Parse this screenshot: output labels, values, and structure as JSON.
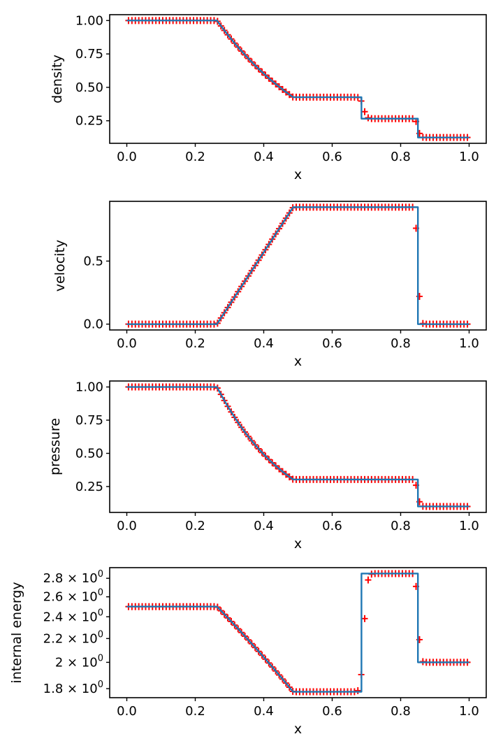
{
  "figure": {
    "background": "#ffffff",
    "line_color": "#1f77b4",
    "marker_color": "#ff0000",
    "axis_color": "#000000"
  },
  "marker_x": [
    0.005,
    0.015,
    0.025,
    0.035,
    0.045,
    0.055,
    0.065,
    0.075,
    0.085,
    0.095,
    0.105,
    0.115,
    0.125,
    0.135,
    0.145,
    0.155,
    0.165,
    0.175,
    0.185,
    0.195,
    0.205,
    0.215,
    0.225,
    0.235,
    0.245,
    0.255,
    0.265,
    0.275,
    0.285,
    0.295,
    0.305,
    0.315,
    0.325,
    0.335,
    0.345,
    0.355,
    0.365,
    0.375,
    0.385,
    0.395,
    0.405,
    0.415,
    0.425,
    0.435,
    0.445,
    0.455,
    0.465,
    0.475,
    0.485,
    0.495,
    0.505,
    0.515,
    0.525,
    0.535,
    0.545,
    0.555,
    0.565,
    0.575,
    0.585,
    0.595,
    0.605,
    0.615,
    0.625,
    0.635,
    0.645,
    0.655,
    0.665,
    0.675,
    0.685,
    0.695,
    0.705,
    0.715,
    0.725,
    0.735,
    0.745,
    0.755,
    0.765,
    0.775,
    0.785,
    0.795,
    0.805,
    0.815,
    0.825,
    0.835,
    0.845,
    0.855,
    0.865,
    0.875,
    0.885,
    0.895,
    0.905,
    0.915,
    0.925,
    0.935,
    0.945,
    0.955,
    0.965,
    0.975,
    0.985,
    0.995
  ],
  "chart_data": [
    {
      "type": "line",
      "title": "",
      "xlabel": "x",
      "ylabel": "density",
      "xscale": "linear",
      "yscale": "linear",
      "xlim": [
        -0.05,
        1.05
      ],
      "ylim": [
        0.08125,
        1.04375
      ],
      "xticks": {
        "values": [
          0.0,
          0.2,
          0.4,
          0.6,
          0.8,
          1.0
        ],
        "labels": [
          "0.0",
          "0.2",
          "0.4",
          "0.6",
          "0.8",
          "1.0"
        ]
      },
      "yticks": {
        "values": [
          0.25,
          0.5,
          0.75,
          1.0
        ],
        "labels": [
          "0.25",
          "0.50",
          "0.75",
          "1.00"
        ]
      },
      "grid": false,
      "legend": null,
      "line_points": [
        [
          0.0,
          1.0
        ],
        [
          0.2634,
          1.0
        ],
        [
          0.265,
          0.9942
        ],
        [
          0.275,
          0.9597
        ],
        [
          0.285,
          0.9261
        ],
        [
          0.295,
          0.8934
        ],
        [
          0.305,
          0.8617
        ],
        [
          0.315,
          0.8309
        ],
        [
          0.325,
          0.801
        ],
        [
          0.335,
          0.7719
        ],
        [
          0.345,
          0.7437
        ],
        [
          0.355,
          0.7163
        ],
        [
          0.365,
          0.6897
        ],
        [
          0.375,
          0.664
        ],
        [
          0.385,
          0.639
        ],
        [
          0.395,
          0.6147
        ],
        [
          0.405,
          0.5912
        ],
        [
          0.415,
          0.5685
        ],
        [
          0.425,
          0.5464
        ],
        [
          0.435,
          0.525
        ],
        [
          0.445,
          0.5043
        ],
        [
          0.455,
          0.4843
        ],
        [
          0.465,
          0.4649
        ],
        [
          0.475,
          0.4461
        ],
        [
          0.485,
          0.4279
        ],
        [
          0.4859,
          0.4263
        ],
        [
          0.6855,
          0.4263
        ],
        [
          0.6855,
          0.2656
        ],
        [
          0.8504,
          0.2656
        ],
        [
          0.8504,
          0.125
        ],
        [
          1.0,
          0.125
        ]
      ],
      "marker_y": [
        1,
        1,
        1,
        1,
        1,
        1,
        1,
        1,
        1,
        1,
        1,
        1,
        1,
        1,
        1,
        1,
        1,
        1,
        1,
        1,
        1,
        1,
        1,
        1,
        1,
        1,
        0.9942,
        0.9597,
        0.9261,
        0.8934,
        0.8617,
        0.8309,
        0.801,
        0.7719,
        0.7437,
        0.7163,
        0.6897,
        0.664,
        0.639,
        0.6147,
        0.5912,
        0.5685,
        0.5464,
        0.525,
        0.5043,
        0.4843,
        0.4649,
        0.4461,
        0.4279,
        0.4263,
        0.4263,
        0.4263,
        0.4263,
        0.4263,
        0.4263,
        0.4263,
        0.4263,
        0.4263,
        0.4263,
        0.4263,
        0.4263,
        0.4263,
        0.4263,
        0.4263,
        0.4263,
        0.4263,
        0.4263,
        0.4245,
        0.398,
        0.318,
        0.2725,
        0.2662,
        0.2656,
        0.2656,
        0.2656,
        0.2656,
        0.2656,
        0.2656,
        0.2656,
        0.2656,
        0.2656,
        0.2656,
        0.2656,
        0.2656,
        0.245,
        0.155,
        0.1262,
        0.125,
        0.125,
        0.125,
        0.125,
        0.125,
        0.125,
        0.125,
        0.125,
        0.125,
        0.125,
        0.125,
        0.125,
        0.125
      ]
    },
    {
      "type": "line",
      "title": "",
      "xlabel": "x",
      "ylabel": "velocity",
      "xscale": "linear",
      "yscale": "linear",
      "xlim": [
        -0.05,
        1.05
      ],
      "ylim": [
        -0.04637,
        0.97382
      ],
      "xticks": {
        "values": [
          0.0,
          0.2,
          0.4,
          0.6,
          0.8,
          1.0
        ],
        "labels": [
          "0.0",
          "0.2",
          "0.4",
          "0.6",
          "0.8",
          "1.0"
        ]
      },
      "yticks": {
        "values": [
          0.0,
          0.5
        ],
        "labels": [
          "0.0",
          "0.5"
        ]
      },
      "grid": false,
      "legend": null,
      "line_points": [
        [
          0.0,
          0.0
        ],
        [
          0.2634,
          0.0
        ],
        [
          0.265,
          0.0069
        ],
        [
          0.275,
          0.0485
        ],
        [
          0.285,
          0.0902
        ],
        [
          0.295,
          0.1319
        ],
        [
          0.305,
          0.1735
        ],
        [
          0.315,
          0.2152
        ],
        [
          0.325,
          0.2569
        ],
        [
          0.335,
          0.2985
        ],
        [
          0.345,
          0.3402
        ],
        [
          0.355,
          0.3819
        ],
        [
          0.365,
          0.4235
        ],
        [
          0.375,
          0.4652
        ],
        [
          0.385,
          0.5069
        ],
        [
          0.395,
          0.5485
        ],
        [
          0.405,
          0.5902
        ],
        [
          0.415,
          0.6319
        ],
        [
          0.425,
          0.6735
        ],
        [
          0.435,
          0.7152
        ],
        [
          0.445,
          0.7569
        ],
        [
          0.455,
          0.7985
        ],
        [
          0.465,
          0.8402
        ],
        [
          0.475,
          0.8819
        ],
        [
          0.485,
          0.9235
        ],
        [
          0.4859,
          0.9274
        ],
        [
          0.8504,
          0.9274
        ],
        [
          0.8504,
          0.0
        ],
        [
          1.0,
          0.0
        ]
      ],
      "marker_y": [
        0,
        0,
        0,
        0,
        0,
        0,
        0,
        0,
        0,
        0,
        0,
        0,
        0,
        0,
        0,
        0,
        0,
        0,
        0,
        0,
        0,
        0,
        0,
        0,
        0,
        0,
        0.0069,
        0.0485,
        0.0902,
        0.1319,
        0.1735,
        0.2152,
        0.2569,
        0.2985,
        0.3402,
        0.3819,
        0.4235,
        0.4652,
        0.5069,
        0.5485,
        0.5902,
        0.6319,
        0.6735,
        0.7152,
        0.7569,
        0.7985,
        0.8402,
        0.8819,
        0.9235,
        0.9274,
        0.9274,
        0.9274,
        0.9274,
        0.9274,
        0.9274,
        0.9274,
        0.9274,
        0.9274,
        0.9274,
        0.9274,
        0.9274,
        0.9274,
        0.9274,
        0.9274,
        0.9274,
        0.9274,
        0.9274,
        0.9274,
        0.9274,
        0.9274,
        0.9274,
        0.9274,
        0.9274,
        0.9274,
        0.9274,
        0.9274,
        0.9274,
        0.9274,
        0.9274,
        0.9274,
        0.9274,
        0.9274,
        0.9274,
        0.9274,
        0.76,
        0.22,
        0.005,
        0,
        0,
        0,
        0,
        0,
        0,
        0,
        0,
        0,
        0,
        0,
        0,
        0
      ]
    },
    {
      "type": "line",
      "title": "",
      "xlabel": "x",
      "ylabel": "pressure",
      "xscale": "linear",
      "yscale": "linear",
      "xlim": [
        -0.05,
        1.05
      ],
      "ylim": [
        0.055,
        1.045
      ],
      "xticks": {
        "values": [
          0.0,
          0.2,
          0.4,
          0.6,
          0.8,
          1.0
        ],
        "labels": [
          "0.0",
          "0.2",
          "0.4",
          "0.6",
          "0.8",
          "1.0"
        ]
      },
      "yticks": {
        "values": [
          0.25,
          0.5,
          0.75,
          1.0
        ],
        "labels": [
          "0.25",
          "0.50",
          "0.75",
          "1.00"
        ]
      },
      "grid": false,
      "legend": null,
      "line_points": [
        [
          0.0,
          1.0
        ],
        [
          0.2634,
          1.0
        ],
        [
          0.265,
          0.9919
        ],
        [
          0.275,
          0.944
        ],
        [
          0.285,
          0.898
        ],
        [
          0.295,
          0.854
        ],
        [
          0.305,
          0.8119
        ],
        [
          0.315,
          0.7715
        ],
        [
          0.325,
          0.7329
        ],
        [
          0.335,
          0.696
        ],
        [
          0.345,
          0.6606
        ],
        [
          0.355,
          0.6268
        ],
        [
          0.365,
          0.5945
        ],
        [
          0.375,
          0.5637
        ],
        [
          0.385,
          0.5342
        ],
        [
          0.395,
          0.506
        ],
        [
          0.405,
          0.4792
        ],
        [
          0.415,
          0.4535
        ],
        [
          0.425,
          0.4291
        ],
        [
          0.435,
          0.4058
        ],
        [
          0.445,
          0.3836
        ],
        [
          0.455,
          0.3624
        ],
        [
          0.465,
          0.3422
        ],
        [
          0.475,
          0.323
        ],
        [
          0.485,
          0.3048
        ],
        [
          0.4859,
          0.3031
        ],
        [
          0.8504,
          0.3031
        ],
        [
          0.8504,
          0.1
        ],
        [
          1.0,
          0.1
        ]
      ],
      "marker_y": [
        1,
        1,
        1,
        1,
        1,
        1,
        1,
        1,
        1,
        1,
        1,
        1,
        1,
        1,
        1,
        1,
        1,
        1,
        1,
        1,
        1,
        1,
        1,
        1,
        1,
        1,
        0.9919,
        0.944,
        0.898,
        0.854,
        0.8119,
        0.7715,
        0.7329,
        0.696,
        0.6606,
        0.6268,
        0.5945,
        0.5637,
        0.5342,
        0.506,
        0.4792,
        0.4535,
        0.4291,
        0.4058,
        0.3836,
        0.3624,
        0.3422,
        0.323,
        0.3048,
        0.3031,
        0.3031,
        0.3031,
        0.3031,
        0.3031,
        0.3031,
        0.3031,
        0.3031,
        0.3031,
        0.3031,
        0.3031,
        0.3031,
        0.3031,
        0.3031,
        0.3031,
        0.3031,
        0.3031,
        0.3031,
        0.3031,
        0.3031,
        0.3031,
        0.3031,
        0.3031,
        0.3031,
        0.3031,
        0.3031,
        0.3031,
        0.3031,
        0.3031,
        0.3031,
        0.3031,
        0.3031,
        0.3031,
        0.3031,
        0.3031,
        0.26,
        0.135,
        0.101,
        0.1,
        0.1,
        0.1,
        0.1,
        0.1,
        0.1,
        0.1,
        0.1,
        0.1,
        0.1,
        0.1,
        0.1,
        0.1
      ]
    },
    {
      "type": "line",
      "title": "",
      "xlabel": "x",
      "ylabel": "internal energy",
      "xscale": "linear",
      "yscale": "log",
      "xlim": [
        -0.05,
        1.05
      ],
      "ylim": [
        1.736,
        2.922
      ],
      "xticks": {
        "values": [
          0.0,
          0.2,
          0.4,
          0.6,
          0.8,
          1.0
        ],
        "labels": [
          "0.0",
          "0.2",
          "0.4",
          "0.6",
          "0.8",
          "1.0"
        ]
      },
      "yticks": {
        "values": [
          1.8,
          2.0,
          2.2,
          2.4,
          2.6,
          2.8
        ],
        "labels": [
          "1.8 × 10^0",
          "2 × 10^0",
          "2.2 × 10^0",
          "2.4 × 10^0",
          "2.6 × 10^0",
          "2.8 × 10^0"
        ]
      },
      "grid": false,
      "legend": null,
      "line_points": [
        [
          0.0,
          2.5
        ],
        [
          0.2634,
          2.5
        ],
        [
          0.265,
          2.4942
        ],
        [
          0.275,
          2.4592
        ],
        [
          0.285,
          2.4243
        ],
        [
          0.295,
          2.3898
        ],
        [
          0.305,
          2.3555
        ],
        [
          0.315,
          2.3214
        ],
        [
          0.325,
          2.2876
        ],
        [
          0.335,
          2.254
        ],
        [
          0.345,
          2.2207
        ],
        [
          0.355,
          2.1877
        ],
        [
          0.365,
          2.1548
        ],
        [
          0.375,
          2.1223
        ],
        [
          0.385,
          2.0899
        ],
        [
          0.395,
          2.0579
        ],
        [
          0.405,
          2.026
        ],
        [
          0.415,
          1.9945
        ],
        [
          0.425,
          1.9631
        ],
        [
          0.435,
          1.932
        ],
        [
          0.445,
          1.9012
        ],
        [
          0.455,
          1.8706
        ],
        [
          0.465,
          1.8403
        ],
        [
          0.475,
          1.8102
        ],
        [
          0.485,
          1.7803
        ],
        [
          0.4859,
          1.7776
        ],
        [
          0.6855,
          1.7776
        ],
        [
          0.6855,
          2.8535
        ],
        [
          0.8504,
          2.8535
        ],
        [
          0.8504,
          2.0
        ],
        [
          1.0,
          2.0
        ]
      ],
      "marker_y": [
        2.5,
        2.5,
        2.5,
        2.5,
        2.5,
        2.5,
        2.5,
        2.5,
        2.5,
        2.5,
        2.5,
        2.5,
        2.5,
        2.5,
        2.5,
        2.5,
        2.5,
        2.5,
        2.5,
        2.5,
        2.5,
        2.5,
        2.5,
        2.5,
        2.5,
        2.5,
        2.4942,
        2.4592,
        2.4243,
        2.3898,
        2.3555,
        2.3214,
        2.2876,
        2.254,
        2.2207,
        2.1877,
        2.1548,
        2.1223,
        2.0899,
        2.0579,
        2.026,
        1.9945,
        1.9631,
        1.932,
        1.9012,
        1.8706,
        1.8403,
        1.8102,
        1.7803,
        1.7776,
        1.7776,
        1.7776,
        1.7776,
        1.7776,
        1.7776,
        1.7776,
        1.7776,
        1.7776,
        1.7776,
        1.7776,
        1.7776,
        1.7776,
        1.7776,
        1.7776,
        1.7776,
        1.7776,
        1.7776,
        1.785,
        1.904,
        2.383,
        2.781,
        2.847,
        2.8535,
        2.8535,
        2.8535,
        2.8535,
        2.8535,
        2.8535,
        2.8535,
        2.8535,
        2.8535,
        2.8535,
        2.8535,
        2.8535,
        2.71,
        2.19,
        2.005,
        2.0,
        2.0,
        2.0,
        2.0,
        2.0,
        2.0,
        2.0,
        2.0,
        2.0,
        2.0,
        2.0,
        2.0,
        2.0
      ]
    }
  ]
}
